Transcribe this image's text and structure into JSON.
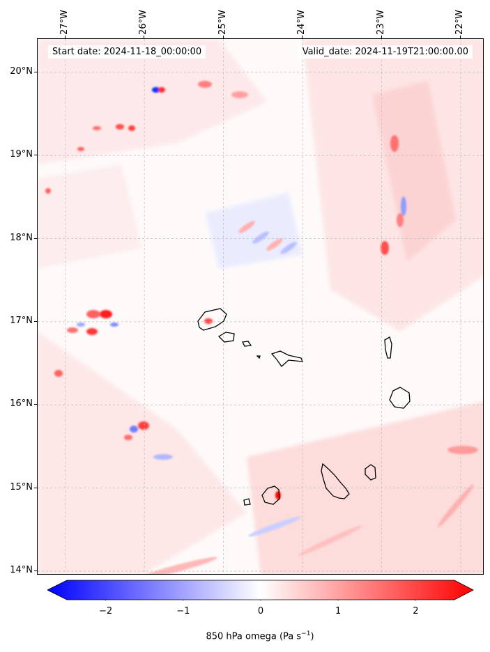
{
  "map": {
    "lon_labels": [
      "27°W",
      "26°W",
      "25°W",
      "24°W",
      "23°W",
      "22°W"
    ],
    "lat_labels": [
      "20°N",
      "19°N",
      "18°N",
      "17°N",
      "16°N",
      "15°N",
      "14°N"
    ],
    "lon_range": [
      -27.35,
      -21.7
    ],
    "lat_range": [
      13.95,
      20.4
    ],
    "start_date": "Start date: 2024-11-18_00:00:00",
    "valid_date": "Valid_date: 2024-11-19T21:00:00.00",
    "colors": {
      "negative": "#0000ff",
      "positive": "#ff0000",
      "coast": "#000000"
    }
  },
  "colorbar": {
    "ticks": [
      "−2",
      "−1",
      "0",
      "1",
      "2"
    ],
    "tick_values": [
      -2,
      -1,
      0,
      1,
      2
    ],
    "range": [
      -2.5,
      2.5
    ],
    "title_prefix": "850 hPa omega (Pa s",
    "title_exp": "−1",
    "title_suffix": ")"
  }
}
